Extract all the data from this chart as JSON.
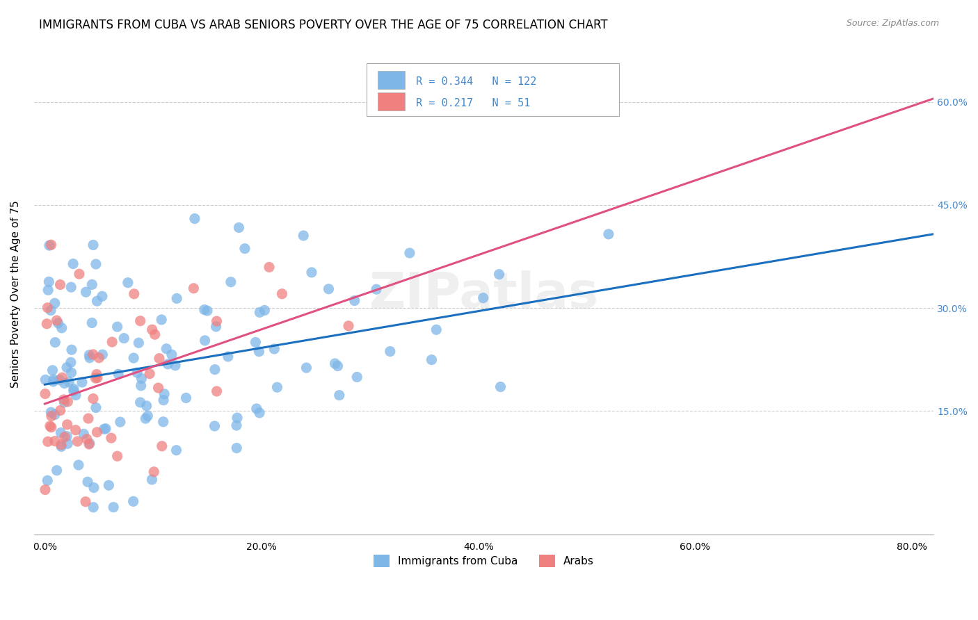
{
  "title": "IMMIGRANTS FROM CUBA VS ARAB SENIORS POVERTY OVER THE AGE OF 75 CORRELATION CHART",
  "source": "Source: ZipAtlas.com",
  "xlabel_ticks": [
    "0.0%",
    "20.0%",
    "40.0%",
    "60.0%",
    "80.0%"
  ],
  "xlabel_tick_vals": [
    0.0,
    0.2,
    0.4,
    0.6,
    0.8
  ],
  "ylabel_ticks": [
    "15.0%",
    "30.0%",
    "45.0%",
    "60.0%"
  ],
  "ylabel_tick_vals": [
    0.15,
    0.3,
    0.45,
    0.6
  ],
  "ylabel": "Seniors Poverty Over the Age of 75",
  "xlim": [
    -0.01,
    0.82
  ],
  "ylim": [
    -0.03,
    0.67
  ],
  "legend_label1": "Immigrants from Cuba",
  "legend_label2": "Arabs",
  "r1": 0.344,
  "n1": 122,
  "r2": 0.217,
  "n2": 51,
  "color_blue": "#7EB6E8",
  "color_pink": "#F08080",
  "line_color_blue": "#1A6FBF",
  "line_color_pink": "#E05080",
  "watermark": "ZIPatlas",
  "title_fontsize": 12,
  "axis_label_fontsize": 11,
  "tick_fontsize": 10,
  "right_tick_color": "#4488CC",
  "seed1": 42,
  "seed2": 99
}
